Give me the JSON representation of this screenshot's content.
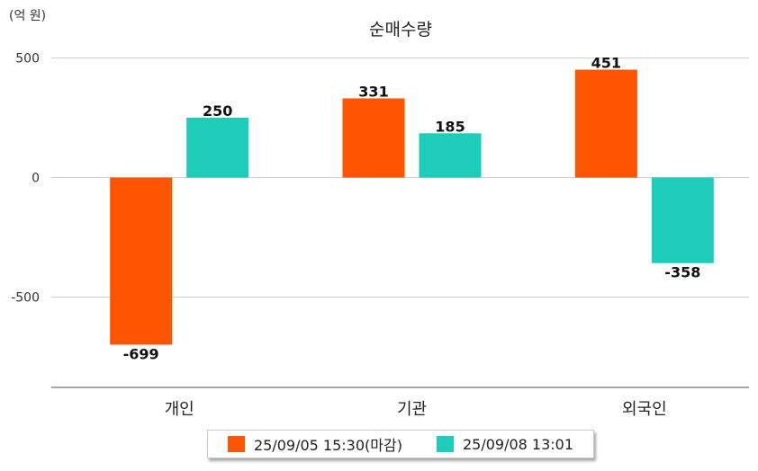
{
  "chart_data": {
    "type": "bar",
    "title": "순매수량",
    "unit_label": "(억 원)",
    "categories": [
      "개인",
      "기관",
      "외국인"
    ],
    "series": [
      {
        "name": "25/09/05 15:30(마감)",
        "color": "#ff5500",
        "values": [
          -699,
          331,
          451
        ]
      },
      {
        "name": "25/09/08 13:01",
        "color": "#1ecdb9",
        "values": [
          250,
          185,
          -358
        ]
      }
    ],
    "yticks": [
      500,
      0,
      -500
    ],
    "ytick_labels": [
      "500",
      "0",
      "-500"
    ],
    "ylim": [
      -870,
      500
    ],
    "grid": true,
    "legend_position": "bottom-center"
  }
}
